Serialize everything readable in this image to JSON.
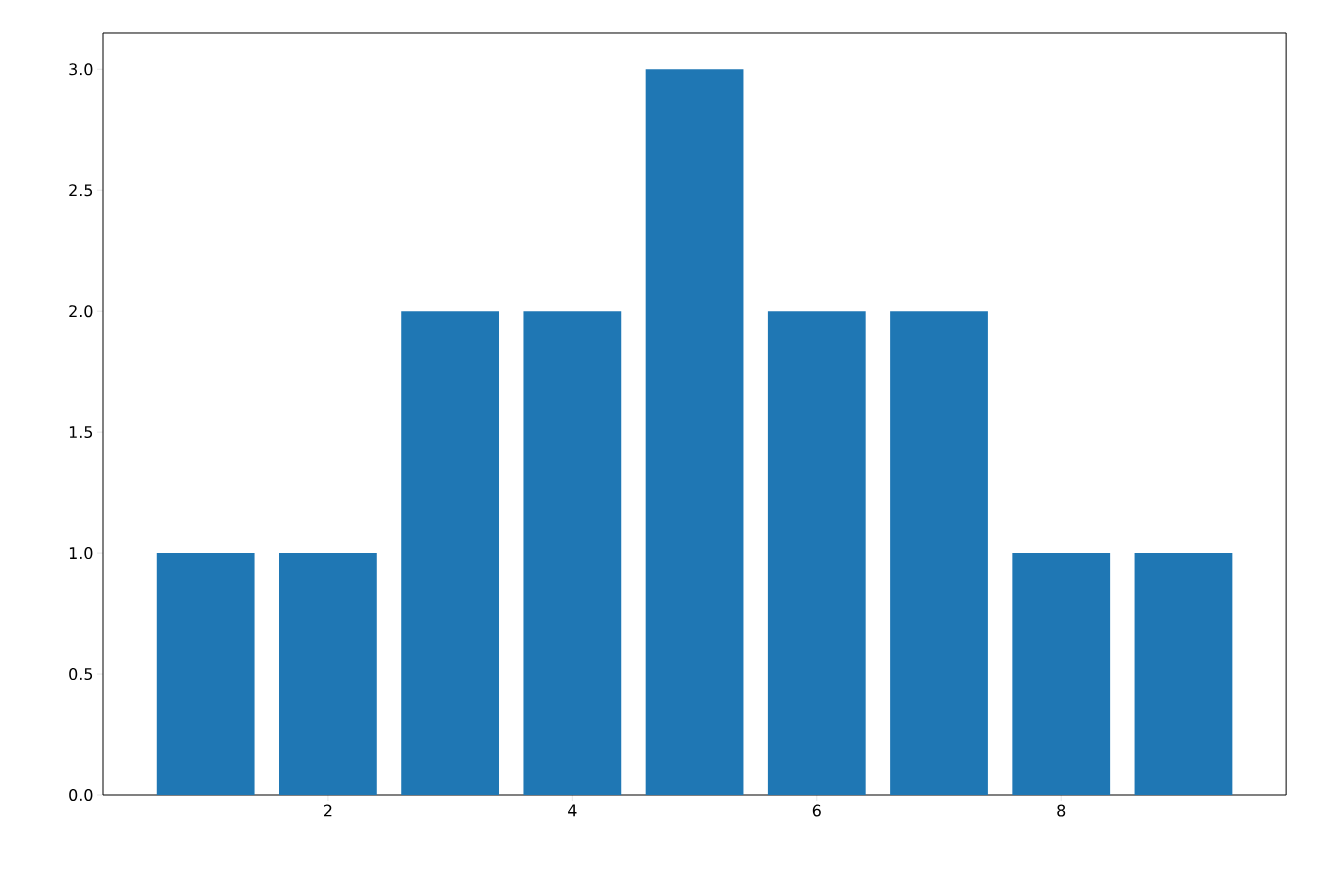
{
  "chart_data": {
    "type": "bar",
    "x": [
      1,
      2,
      3,
      4,
      5,
      6,
      7,
      8,
      9
    ],
    "values": [
      1,
      1,
      2,
      2,
      3,
      2,
      2,
      1,
      1
    ],
    "color": "#1f77b4",
    "xlim": [
      0.16,
      9.84
    ],
    "xticks": [
      2,
      4,
      6,
      8
    ],
    "ylim": [
      0,
      3.15
    ],
    "yticks": [
      {
        "value": 0,
        "label": "0.0"
      },
      {
        "value": 0.5,
        "label": "0.5"
      },
      {
        "value": 1,
        "label": "1.0"
      },
      {
        "value": 1.5,
        "label": "1.5"
      },
      {
        "value": 2,
        "label": "2.0"
      },
      {
        "value": 2.5,
        "label": "2.5"
      },
      {
        "value": 3,
        "label": "3.0"
      }
    ]
  }
}
